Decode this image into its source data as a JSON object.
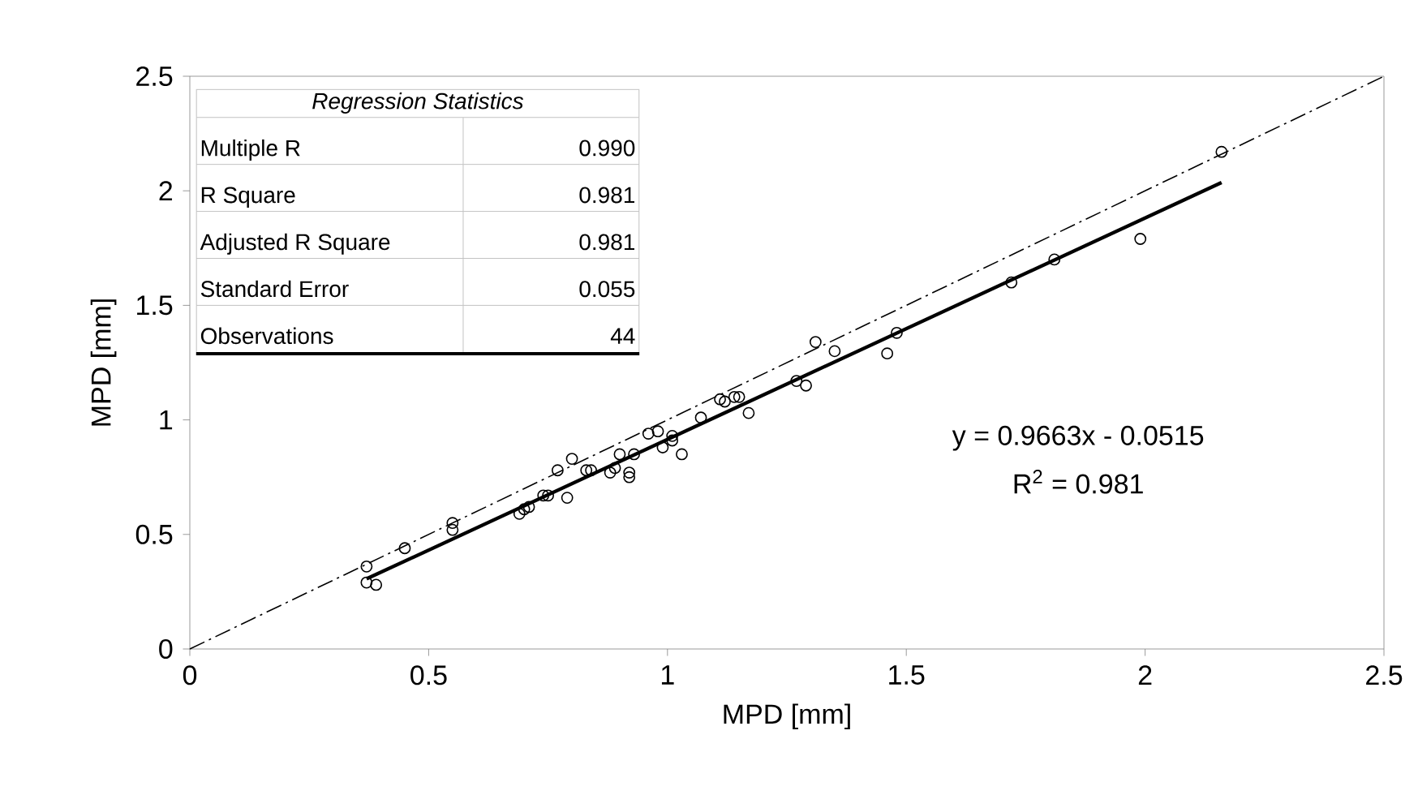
{
  "chart_data": {
    "type": "scatter",
    "xlabel": "MPD [mm]",
    "ylabel": "MPD [mm]",
    "xlim": [
      0,
      2.5
    ],
    "ylim": [
      0,
      2.5
    ],
    "xticks": [
      0,
      0.5,
      1,
      1.5,
      2,
      2.5
    ],
    "yticks": [
      0,
      0.5,
      1,
      1.5,
      2,
      2.5
    ],
    "grid": false,
    "marker": "circle",
    "series": [
      {
        "color": "#000000",
        "x": [
          0.37,
          0.37,
          0.39,
          0.45,
          0.55,
          0.55,
          0.69,
          0.7,
          0.71,
          0.74,
          0.75,
          0.77,
          0.8,
          0.79,
          0.83,
          0.84,
          0.88,
          0.89,
          0.9,
          0.92,
          0.92,
          0.93,
          0.96,
          0.98,
          0.99,
          1.01,
          1.01,
          1.03,
          1.07,
          1.11,
          1.12,
          1.14,
          1.15,
          1.17,
          1.27,
          1.29,
          1.31,
          1.35,
          1.46,
          1.48,
          1.72,
          1.81,
          1.99,
          2.16
        ],
        "values": [
          0.36,
          0.29,
          0.28,
          0.44,
          0.55,
          0.52,
          0.59,
          0.61,
          0.62,
          0.67,
          0.67,
          0.78,
          0.83,
          0.66,
          0.78,
          0.78,
          0.77,
          0.79,
          0.85,
          0.77,
          0.75,
          0.85,
          0.94,
          0.95,
          0.88,
          0.93,
          0.91,
          0.85,
          1.01,
          1.09,
          1.08,
          1.1,
          1.1,
          1.03,
          1.17,
          1.15,
          1.34,
          1.3,
          1.29,
          1.38,
          1.6,
          1.7,
          1.79,
          2.17
        ]
      },
      {
        "type": "line",
        "color": "#000000",
        "line_style": "solid",
        "marker": "none",
        "x": [
          0.37,
          2.16
        ],
        "values": [
          0.306,
          2.036
        ]
      },
      {
        "type": "line",
        "color": "#000000",
        "line_style": "dashed",
        "marker": "none",
        "x": [
          0,
          2.5
        ],
        "values": [
          0,
          2.5
        ]
      }
    ],
    "annotations": [
      "Regression Statistics",
      "Multiple R",
      "0.990",
      "R Square",
      "0.981",
      "Adjusted R Square",
      "0.981",
      "Standard Error",
      "0.055",
      "Observations",
      "44",
      "y = 0.9663x - 0.0515",
      "R$^{2}$ = 0.981"
    ]
  }
}
